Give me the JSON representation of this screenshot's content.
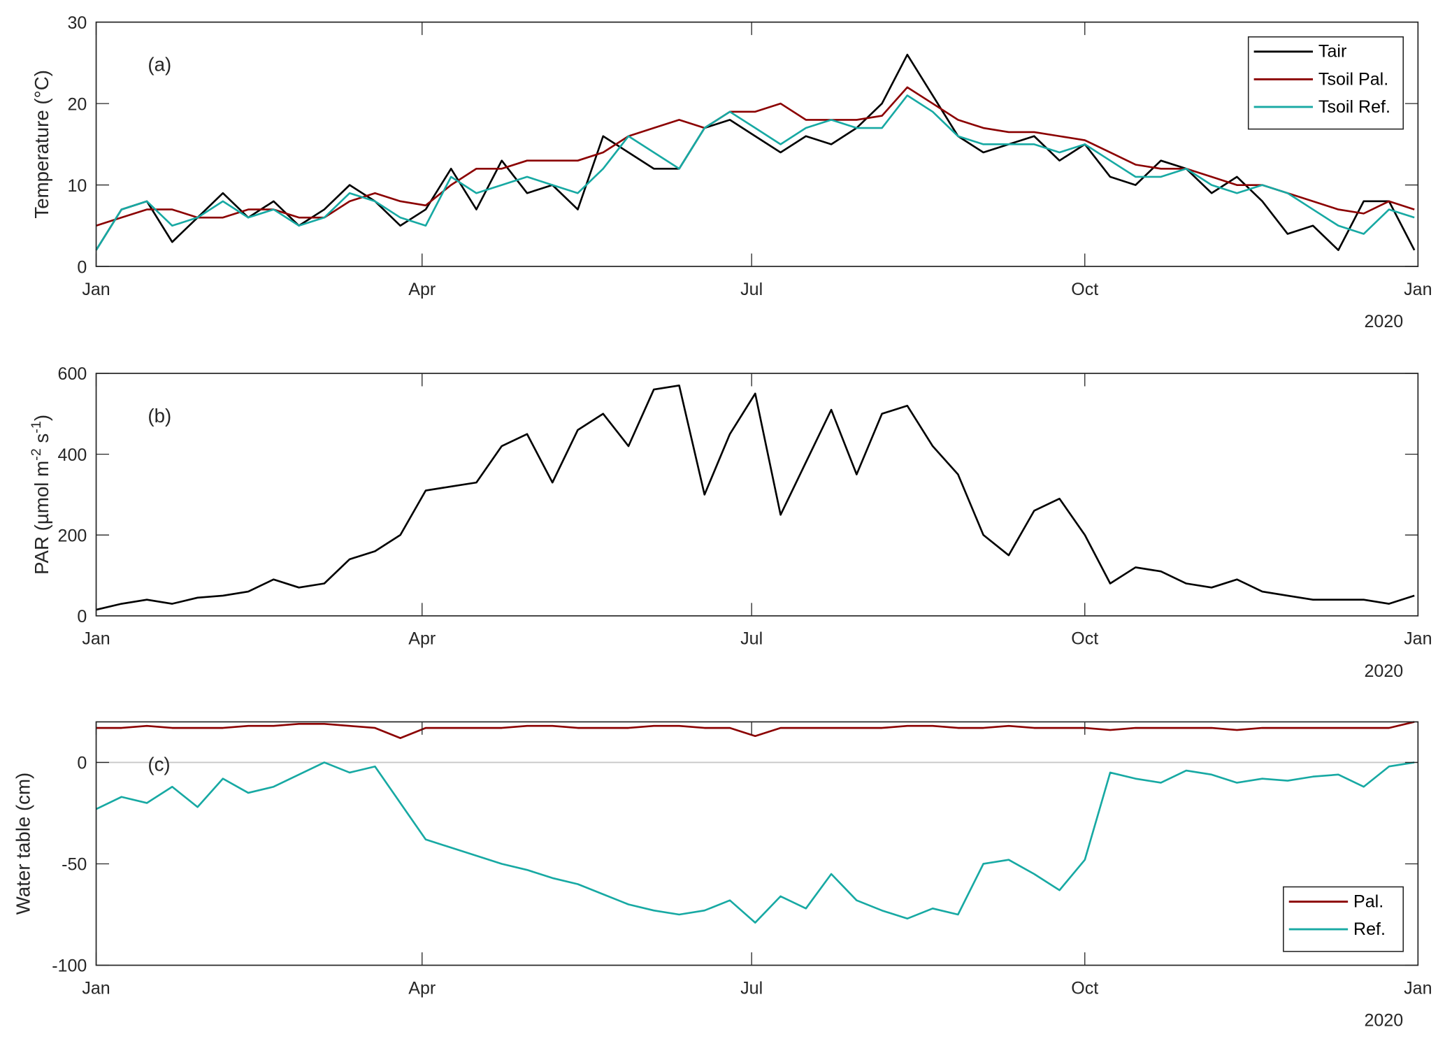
{
  "colors": {
    "tair": "#000000",
    "pal": "#8b0000",
    "ref": "#17a9a3",
    "zero_line": "#c8c8c8",
    "axis": "#262626"
  },
  "x_axis": {
    "ticks": [
      "2019-01-01",
      "2019-04-01",
      "2019-07-01",
      "2019-10-01",
      "2020-01-01"
    ],
    "tick_labels": [
      "Jan",
      "Apr",
      "Jul",
      "Oct",
      "Jan"
    ],
    "year_label": "2020",
    "range": [
      "2019-01-01",
      "2020-01-01"
    ]
  },
  "chart_data": [
    {
      "type": "line",
      "panel_label": "(a)",
      "ylabel": "Temperature (°C)",
      "ylim": [
        0,
        30
      ],
      "yticks": [
        0,
        10,
        20,
        30
      ],
      "legend": "top-right",
      "x": [
        "2019-01-01",
        "2019-01-08",
        "2019-01-15",
        "2019-01-22",
        "2019-01-29",
        "2019-02-05",
        "2019-02-12",
        "2019-02-19",
        "2019-02-26",
        "2019-03-05",
        "2019-03-12",
        "2019-03-19",
        "2019-03-26",
        "2019-04-02",
        "2019-04-09",
        "2019-04-16",
        "2019-04-23",
        "2019-04-30",
        "2019-05-07",
        "2019-05-14",
        "2019-05-21",
        "2019-05-28",
        "2019-06-04",
        "2019-06-11",
        "2019-06-18",
        "2019-06-25",
        "2019-07-02",
        "2019-07-09",
        "2019-07-16",
        "2019-07-23",
        "2019-07-30",
        "2019-08-06",
        "2019-08-13",
        "2019-08-20",
        "2019-08-27",
        "2019-09-03",
        "2019-09-10",
        "2019-09-17",
        "2019-09-24",
        "2019-10-01",
        "2019-10-08",
        "2019-10-15",
        "2019-10-22",
        "2019-10-29",
        "2019-11-05",
        "2019-11-12",
        "2019-11-19",
        "2019-11-26",
        "2019-12-03",
        "2019-12-10",
        "2019-12-17",
        "2019-12-24",
        "2019-12-31"
      ],
      "series": [
        {
          "name": "Tair",
          "color": "#000000",
          "values": [
            2,
            7,
            8,
            3,
            6,
            9,
            6,
            8,
            5,
            7,
            10,
            8,
            5,
            7,
            12,
            7,
            13,
            9,
            10,
            7,
            16,
            14,
            12,
            12,
            17,
            18,
            16,
            14,
            16,
            15,
            17,
            20,
            26,
            21,
            16,
            14,
            15,
            16,
            13,
            15,
            11,
            10,
            13,
            12,
            9,
            11,
            8,
            4,
            5,
            2,
            8,
            8,
            2
          ]
        },
        {
          "name": "Tsoil Pal.",
          "color": "#8b0000",
          "values": [
            5,
            6,
            7,
            7,
            6,
            6,
            7,
            7,
            6,
            6,
            8,
            9,
            8,
            7.5,
            10,
            12,
            12,
            13,
            13,
            13,
            14,
            16,
            17,
            18,
            17,
            19,
            19,
            20,
            18,
            18,
            18,
            18.5,
            22,
            20,
            18,
            17,
            16.5,
            16.5,
            16,
            15.5,
            14,
            12.5,
            12,
            12,
            11,
            10,
            10,
            9,
            8,
            7,
            6.5,
            8,
            7
          ]
        },
        {
          "name": "Tsoil Ref.",
          "color": "#17a9a3",
          "values": [
            2,
            7,
            8,
            5,
            6,
            8,
            6,
            7,
            5,
            6,
            9,
            8,
            6,
            5,
            11,
            9,
            10,
            11,
            10,
            9,
            12,
            16,
            14,
            12,
            17,
            19,
            17,
            15,
            17,
            18,
            17,
            17,
            21,
            19,
            16,
            15,
            15,
            15,
            14,
            15,
            13,
            11,
            11,
            12,
            10,
            9,
            10,
            9,
            7,
            5,
            4,
            7,
            6
          ]
        }
      ]
    },
    {
      "type": "line",
      "panel_label": "(b)",
      "ylabel": "PAR (µmol m",
      "ylabel_sup1": "-2",
      "ylabel_mid": " s",
      "ylabel_sup2": "-1",
      "ylabel_end": ")",
      "ylim": [
        0,
        600
      ],
      "yticks": [
        0,
        200,
        400,
        600
      ],
      "x": [
        "2019-01-01",
        "2019-01-08",
        "2019-01-15",
        "2019-01-22",
        "2019-01-29",
        "2019-02-05",
        "2019-02-12",
        "2019-02-19",
        "2019-02-26",
        "2019-03-05",
        "2019-03-12",
        "2019-03-19",
        "2019-03-26",
        "2019-04-02",
        "2019-04-09",
        "2019-04-16",
        "2019-04-23",
        "2019-04-30",
        "2019-05-07",
        "2019-05-14",
        "2019-05-21",
        "2019-05-28",
        "2019-06-04",
        "2019-06-11",
        "2019-06-18",
        "2019-06-25",
        "2019-07-02",
        "2019-07-09",
        "2019-07-16",
        "2019-07-23",
        "2019-07-30",
        "2019-08-06",
        "2019-08-13",
        "2019-08-20",
        "2019-08-27",
        "2019-09-03",
        "2019-09-10",
        "2019-09-17",
        "2019-09-24",
        "2019-10-01",
        "2019-10-08",
        "2019-10-15",
        "2019-10-22",
        "2019-10-29",
        "2019-11-05",
        "2019-11-12",
        "2019-11-19",
        "2019-11-26",
        "2019-12-03",
        "2019-12-10",
        "2019-12-17",
        "2019-12-24",
        "2019-12-31"
      ],
      "series": [
        {
          "color": "#000000",
          "values": [
            15,
            30,
            40,
            30,
            45,
            50,
            60,
            90,
            70,
            80,
            140,
            160,
            200,
            310,
            320,
            330,
            420,
            450,
            330,
            460,
            500,
            420,
            560,
            570,
            300,
            450,
            550,
            250,
            380,
            510,
            350,
            500,
            520,
            420,
            350,
            200,
            150,
            260,
            290,
            200,
            80,
            120,
            110,
            80,
            70,
            90,
            60,
            50,
            40,
            40,
            40,
            30,
            50
          ]
        }
      ]
    },
    {
      "type": "line",
      "panel_label": "(c)",
      "ylabel": "Water table (cm)",
      "ylim": [
        -100,
        20
      ],
      "yticks": [
        -100,
        -50,
        0
      ],
      "zero_line": true,
      "legend": "bottom-right",
      "x": [
        "2019-01-01",
        "2019-01-08",
        "2019-01-15",
        "2019-01-22",
        "2019-01-29",
        "2019-02-05",
        "2019-02-12",
        "2019-02-19",
        "2019-02-26",
        "2019-03-05",
        "2019-03-12",
        "2019-03-19",
        "2019-03-26",
        "2019-04-02",
        "2019-04-09",
        "2019-04-16",
        "2019-04-23",
        "2019-04-30",
        "2019-05-07",
        "2019-05-14",
        "2019-05-21",
        "2019-05-28",
        "2019-06-04",
        "2019-06-11",
        "2019-06-18",
        "2019-06-25",
        "2019-07-02",
        "2019-07-09",
        "2019-07-16",
        "2019-07-23",
        "2019-07-30",
        "2019-08-06",
        "2019-08-13",
        "2019-08-20",
        "2019-08-27",
        "2019-09-03",
        "2019-09-10",
        "2019-09-17",
        "2019-09-24",
        "2019-10-01",
        "2019-10-08",
        "2019-10-15",
        "2019-10-22",
        "2019-10-29",
        "2019-11-05",
        "2019-11-12",
        "2019-11-19",
        "2019-11-26",
        "2019-12-03",
        "2019-12-10",
        "2019-12-17",
        "2019-12-24",
        "2019-12-31"
      ],
      "series": [
        {
          "name": "Pal.",
          "color": "#8b0000",
          "values": [
            17,
            17,
            18,
            17,
            17,
            17,
            18,
            18,
            19,
            19,
            18,
            17,
            12,
            17,
            17,
            17,
            17,
            18,
            18,
            17,
            17,
            17,
            18,
            18,
            17,
            17,
            13,
            17,
            17,
            17,
            17,
            17,
            18,
            18,
            17,
            17,
            18,
            17,
            17,
            17,
            16,
            17,
            17,
            17,
            17,
            16,
            17,
            17,
            17,
            17,
            17,
            17,
            20
          ]
        },
        {
          "name": "Ref.",
          "color": "#17a9a3",
          "values": [
            -23,
            -17,
            -20,
            -12,
            -22,
            -8,
            -15,
            -12,
            -6,
            0,
            -5,
            -2,
            -20,
            -38,
            -42,
            -46,
            -50,
            -53,
            -57,
            -60,
            -65,
            -70,
            -73,
            -75,
            -73,
            -68,
            -79,
            -66,
            -72,
            -55,
            -68,
            -73,
            -77,
            -72,
            -75,
            -50,
            -48,
            -55,
            -63,
            -48,
            -5,
            -8,
            -10,
            -4,
            -6,
            -10,
            -8,
            -9,
            -7,
            -6,
            -12,
            -2,
            0
          ]
        }
      ]
    }
  ]
}
